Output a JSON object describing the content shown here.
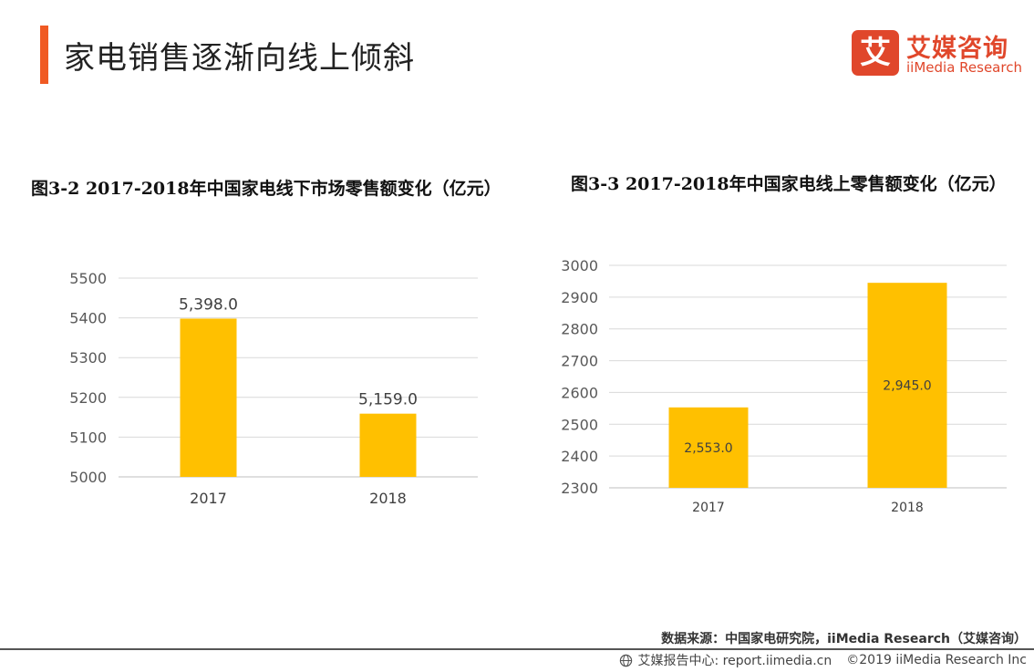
{
  "page": {
    "title": "家电销售逐渐向线上倾斜",
    "accent_color": "#f05a23"
  },
  "logo": {
    "mark_char": "艾",
    "name_cn": "艾媒咨询",
    "name_en": "iiMedia Research",
    "brand_color": "#e0472b"
  },
  "chart_data": [
    {
      "type": "bar",
      "title": "图3-2 2017-2018年中国家电线下市场零售额变化（亿元）",
      "categories": [
        "2017",
        "2018"
      ],
      "values": [
        5398.0,
        5159.0
      ],
      "value_labels": [
        "5,398.0",
        "5,159.0"
      ],
      "ylim": [
        5000,
        5500
      ],
      "yticks": [
        "5500",
        "5400",
        "5300",
        "5200",
        "5100",
        "5000"
      ],
      "grid": true,
      "bar_color": "#ffc000",
      "label_position": "above"
    },
    {
      "type": "bar",
      "title": "图3-3 2017-2018年中国家电线上零售额变化（亿元）",
      "categories": [
        "2017",
        "2018"
      ],
      "values": [
        2553.0,
        2945.0
      ],
      "value_labels": [
        "2,553.0",
        "2,945.0"
      ],
      "ylim": [
        2300,
        3000
      ],
      "yticks": [
        "3000",
        "2900",
        "2800",
        "2700",
        "2600",
        "2500",
        "2400",
        "2300"
      ],
      "grid": true,
      "bar_color": "#ffc000",
      "label_position": "inside"
    }
  ],
  "source": "数据来源：中国家电研究院，iiMedia Research（艾媒咨询）",
  "footer": {
    "report_center": "艾媒报告中心: report.iimedia.cn",
    "copyright": "©2019  iiMedia Research  Inc"
  }
}
